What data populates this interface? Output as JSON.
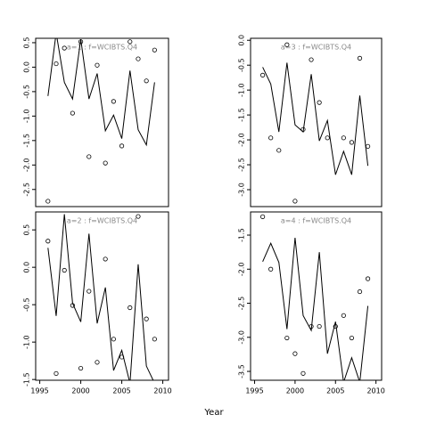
{
  "chart_data": [
    {
      "type": "line",
      "title": "a=1  :  f=WCIBTS.Q4",
      "x": [
        1996,
        1997,
        1998,
        1999,
        2000,
        2001,
        2002,
        2003,
        2004,
        2005,
        2006,
        2007,
        2008,
        2009
      ],
      "series": [
        {
          "type": "line",
          "color": "#000000",
          "values": [
            -0.59,
            0.7,
            -0.31,
            -0.65,
            0.57,
            -0.65,
            -0.13,
            -1.3,
            -0.98,
            -1.46,
            -0.07,
            -1.28,
            -1.59,
            -0.31
          ]
        },
        {
          "type": "scatter",
          "color": "#000000",
          "values": [
            -2.74,
            0.07,
            0.39,
            -0.94,
            0.52,
            -1.83,
            0.04,
            -1.96,
            -0.7,
            -1.61,
            0.52,
            0.17,
            -0.28,
            0.35
          ]
        }
      ],
      "xlim": [
        1994.5,
        2010.7
      ],
      "ylim": [
        -2.85,
        0.59
      ],
      "yticks": [
        0.5,
        {
          "value": 0,
          "label": "0.0"
        },
        -0.5,
        {
          "value": -1,
          "label": "-1.0"
        },
        -1.5,
        {
          "value": -2,
          "label": "-2.0"
        },
        -2.5
      ]
    },
    {
      "type": "line",
      "title": "a=3  :  f=WCIBTS.Q4",
      "x": [
        1996,
        1997,
        1998,
        1999,
        2000,
        2001,
        2002,
        2003,
        2004,
        2005,
        2006,
        2007,
        2008,
        2009
      ],
      "series": [
        {
          "type": "line",
          "color": "#000000",
          "values": [
            -0.54,
            -0.88,
            -1.84,
            -0.45,
            -1.7,
            -1.84,
            -0.68,
            -2.02,
            -1.61,
            -2.7,
            -2.23,
            -2.7,
            -1.11,
            -2.52
          ]
        },
        {
          "type": "scatter",
          "color": "#000000",
          "values": [
            -0.7,
            -1.96,
            -2.21,
            -0.09,
            -3.23,
            -1.79,
            -0.39,
            -1.25,
            -1.96,
            null,
            -1.96,
            -2.05,
            -0.36,
            -2.13
          ]
        }
      ],
      "xlim": [
        1994.5,
        2010.7
      ],
      "ylim": [
        -3.34,
        0.04
      ],
      "yticks": [
        {
          "value": 0,
          "label": "0.0"
        },
        -0.5,
        {
          "value": -1,
          "label": "-1.0"
        },
        -1.5,
        {
          "value": -2,
          "label": "-2.0"
        },
        -2.5,
        {
          "value": -3,
          "label": "-3.0"
        }
      ]
    },
    {
      "type": "line",
      "title": "a=2  :  f=WCIBTS.Q4",
      "xlabel": "Year",
      "x": [
        1996,
        1997,
        1998,
        1999,
        2000,
        2001,
        2002,
        2003,
        2004,
        2005,
        2006,
        2007,
        2008,
        2009
      ],
      "series": [
        {
          "type": "line",
          "color": "#000000",
          "values": [
            0.26,
            -0.65,
            0.71,
            -0.48,
            -0.73,
            0.45,
            -0.75,
            -0.27,
            -1.38,
            -1.11,
            -1.55,
            0.04,
            -1.32,
            -1.55
          ]
        },
        {
          "type": "scatter",
          "color": "#000000",
          "values": [
            0.35,
            -1.42,
            -0.04,
            -0.51,
            -1.35,
            -0.32,
            -1.27,
            0.11,
            -0.96,
            -1.2,
            -0.54,
            0.68,
            -0.69,
            -0.96
          ]
        }
      ],
      "xlim": [
        1994.5,
        2010.7
      ],
      "ylim": [
        -1.51,
        0.74
      ],
      "xticks": [
        1995,
        2000,
        2005,
        2010
      ],
      "yticks": [
        0.5,
        {
          "value": 0,
          "label": "0.0"
        },
        -0.5,
        {
          "value": -1,
          "label": "-1.0"
        },
        -1.5
      ]
    },
    {
      "type": "line",
      "title": "a=4  :  f=WCIBTS.Q4",
      "x": [
        1996,
        1997,
        1998,
        1999,
        2000,
        2001,
        2002,
        2003,
        2004,
        2005,
        2006,
        2007,
        2008,
        2009
      ],
      "series": [
        {
          "type": "line",
          "color": "#000000",
          "values": [
            -1.89,
            -1.62,
            -1.9,
            -2.88,
            -1.54,
            -2.68,
            -2.9,
            -1.75,
            -3.24,
            -2.77,
            -3.66,
            -3.3,
            -3.66,
            -2.54
          ]
        },
        {
          "type": "scatter",
          "color": "#000000",
          "values": [
            -1.23,
            -2.0,
            null,
            -3.01,
            -3.24,
            -3.53,
            -2.84,
            -2.84,
            null,
            -2.84,
            -2.68,
            -3.01,
            -2.33,
            -2.14
          ]
        }
      ],
      "xlim": [
        1994.5,
        2010.7
      ],
      "ylim": [
        -3.63,
        -1.16
      ],
      "xticks": [
        1995,
        2000,
        2005,
        2010
      ],
      "yticks": [
        -1.5,
        {
          "value": -2,
          "label": "-2.0"
        },
        -2.5,
        {
          "value": -3,
          "label": "-3.0"
        },
        -3.5
      ]
    }
  ]
}
